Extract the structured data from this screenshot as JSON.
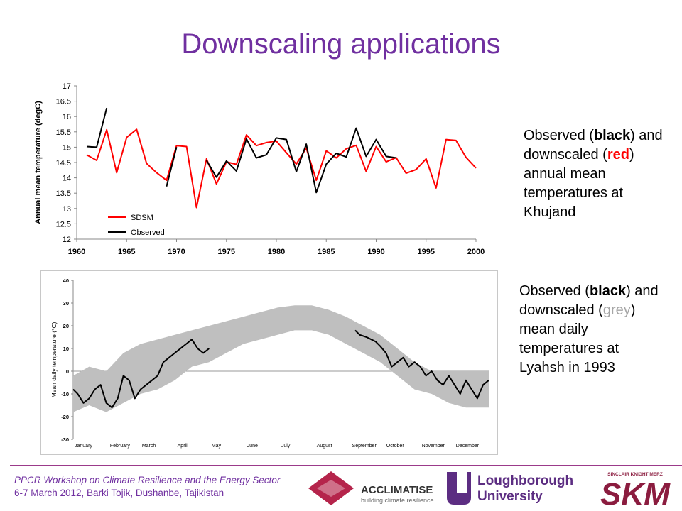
{
  "slide": {
    "title": "Downscaling applications"
  },
  "captions": {
    "top": {
      "pre": "Observed (",
      "a": "black",
      "mid": ") and downscaled (",
      "b": "red",
      "post": ") annual mean temperatures at Khujand"
    },
    "bottom": {
      "pre": "Observed (",
      "a": "black",
      "mid": ") and downscaled (",
      "b": "grey",
      "post": ") mean daily temperatures at Lyahsh in 1993"
    }
  },
  "footer": {
    "line1": "PPCR Workshop on Climate Resilience and the Energy Sector",
    "line2": "6-7 March 2012, Barki Tojik, Dushanbe, Tajikistan"
  },
  "logos": {
    "acclimatise_name": "ACCLIMATISE",
    "acclimatise_tagline": "building climate resilience",
    "loughborough_line1": "Loughborough",
    "loughborough_line2": "University",
    "skm_small": "SINCLAIR KNIGHT MERZ",
    "skm_big": "SKM"
  },
  "colors": {
    "title": "#7030a0",
    "sdsm": "#ff0000",
    "observed": "#000000",
    "grey_band": "#bfbfbf",
    "footer": "#7030a0"
  },
  "chart_data": [
    {
      "type": "line",
      "ylabel": "Annual mean temperature (degC)",
      "xlabel": "",
      "xlim": [
        1960,
        2000
      ],
      "ylim": [
        12,
        17
      ],
      "xticks": [
        "1960",
        "1965",
        "1970",
        "1975",
        "1980",
        "1985",
        "1990",
        "1995",
        "2000"
      ],
      "yticks": [
        "12",
        "12.5",
        "13",
        "13.5",
        "14",
        "14.5",
        "15",
        "15.5",
        "16",
        "16.5",
        "17"
      ],
      "legend_position": "bottom-left",
      "grid": false,
      "series": [
        {
          "name": "SDSM",
          "color": "#ff0000",
          "x": [
            1961,
            1962,
            1963,
            1964,
            1965,
            1966,
            1967,
            1968,
            1969,
            1970,
            1971,
            1972,
            1973,
            1974,
            1975,
            1976,
            1977,
            1978,
            1979,
            1980,
            1981,
            1982,
            1983,
            1984,
            1985,
            1986,
            1987,
            1988,
            1989,
            1990,
            1991,
            1992,
            1993,
            1994,
            1995,
            1996,
            1997,
            1998,
            1999,
            2000
          ],
          "y": [
            14.75,
            14.57,
            15.57,
            14.17,
            15.32,
            15.58,
            14.47,
            14.17,
            13.92,
            15.05,
            15.02,
            13.03,
            14.62,
            13.8,
            14.52,
            14.44,
            15.4,
            15.05,
            15.15,
            15.2,
            14.82,
            14.45,
            14.97,
            13.92,
            14.88,
            14.65,
            14.95,
            15.06,
            14.21,
            15.02,
            14.52,
            14.66,
            14.15,
            14.27,
            14.62,
            13.67,
            15.25,
            15.22,
            14.67,
            14.32
          ]
        },
        {
          "name": "Observed",
          "color": "#000000",
          "x": [
            1961,
            1962,
            1963,
            null,
            1969,
            1970,
            null,
            1973,
            1974,
            1975,
            1976,
            1977,
            1978,
            1979,
            1980,
            1981,
            1982,
            1983,
            1984,
            1985,
            1986,
            1987,
            1988,
            1989,
            1990,
            1991,
            1992
          ],
          "y": [
            15.02,
            15.0,
            16.28,
            null,
            13.72,
            15.0,
            null,
            14.57,
            14.02,
            14.55,
            14.22,
            15.27,
            14.65,
            14.75,
            15.3,
            15.25,
            14.2,
            15.1,
            13.52,
            14.45,
            14.8,
            14.68,
            15.62,
            14.7,
            15.25,
            14.7,
            14.65
          ]
        }
      ]
    },
    {
      "type": "line",
      "ylabel": "Mean daily temperature (°C)",
      "xlabel": "",
      "ylim": [
        -30,
        40
      ],
      "yticks": [
        "40",
        "30",
        "20",
        "10",
        "0",
        "-10",
        "-20",
        "-30"
      ],
      "xtick_labels": [
        "January",
        "February",
        "March",
        "April",
        "May",
        "June",
        "July",
        "August",
        "September",
        "October",
        "November",
        "December"
      ],
      "grid": false,
      "series": [
        {
          "name": "",
          "kind": "band",
          "color": "#bfbfbf",
          "x_day": [
            1,
            15,
            30,
            45,
            60,
            75,
            90,
            105,
            120,
            135,
            150,
            165,
            180,
            195,
            210,
            225,
            240,
            255,
            270,
            285,
            300,
            315,
            330,
            345,
            365
          ],
          "low": [
            -18,
            -15,
            -18,
            -14,
            -10,
            -8,
            -4,
            2,
            4,
            8,
            12,
            14,
            16,
            18,
            18,
            16,
            12,
            8,
            4,
            -2,
            -8,
            -10,
            -14,
            -16,
            -16
          ],
          "high": [
            -2,
            2,
            0,
            8,
            12,
            14,
            16,
            18,
            20,
            22,
            24,
            26,
            28,
            29,
            29,
            27,
            24,
            20,
            16,
            10,
            4,
            0,
            0,
            0,
            0
          ]
        },
        {
          "name": "",
          "kind": "observed",
          "color": "#000000",
          "x_day": [
            1,
            5,
            10,
            15,
            20,
            25,
            30,
            35,
            40,
            45,
            50,
            55,
            60,
            65,
            70,
            75,
            80,
            85,
            90,
            95,
            100,
            105,
            110,
            115,
            120,
            null,
            248,
            252,
            258,
            262,
            266,
            270,
            275,
            280,
            285,
            290,
            295,
            300,
            305,
            310,
            315,
            320,
            325,
            330,
            335,
            340,
            345,
            350,
            355,
            360,
            365
          ],
          "y": [
            -8,
            -10,
            -14,
            -12,
            -8,
            -6,
            -14,
            -16,
            -12,
            -2,
            -4,
            -12,
            -8,
            -6,
            -4,
            -2,
            4,
            6,
            8,
            10,
            12,
            14,
            10,
            8,
            10,
            null,
            18,
            16,
            15,
            14,
            13,
            11,
            8,
            2,
            4,
            6,
            2,
            4,
            2,
            -2,
            0,
            -4,
            -6,
            -2,
            -6,
            -10,
            -4,
            -8,
            -12,
            -6,
            -4
          ]
        }
      ]
    }
  ]
}
